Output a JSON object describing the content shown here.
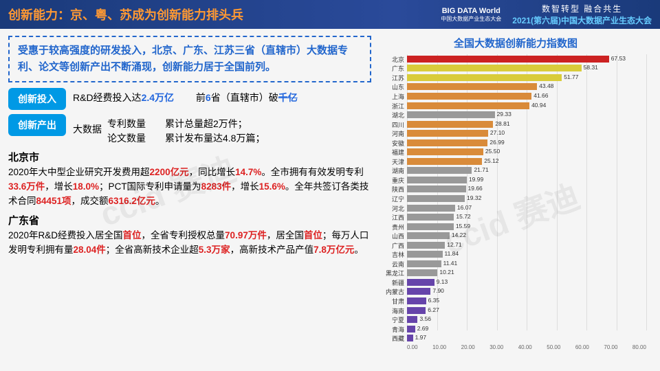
{
  "header": {
    "title": "创新能力：京、粤、苏成为创新能力排头兵",
    "logo_top": "BIG DATA World",
    "logo_sub": "中国大数据产业生态大会",
    "right_line1": "数智转型 融合共生",
    "right_line2": "2021(第六届)中国大数据产业生态大会"
  },
  "summary": "受惠于较高强度的研发投入，北京、广东、江苏三省（直辖市）大数据专利、论文等创新产出不断涌现，创新能力居于全国前列。",
  "badge1": {
    "label": "创新投入",
    "text_a": "R&D经费投入达",
    "hl_a": "2.4万亿",
    "text_b": "前",
    "hl_b": "6",
    "text_c": "省（直辖市）破",
    "hl_c": "千亿"
  },
  "badge2": {
    "label": "创新产出",
    "prefix": "大数据",
    "line1_a": "专利数量",
    "line1_b": "累计总量超2万件；",
    "line2_a": "论文数量",
    "line2_b": "累计发布量达4.8万篇；"
  },
  "beijing": {
    "title": "北京市",
    "t1": "2020年大中型企业研究开发费用超",
    "v1": "2200亿元",
    "t2": "，同比增长",
    "v2": "14.7%",
    "t3": "。全市拥有有效发明专利",
    "v3": "33.6万件",
    "t4": "，增长",
    "v4": "18.0%",
    "t5": "；PCT国际专利申请量为",
    "v5": "8283件",
    "t6": "，增长",
    "v6": "15.6%",
    "t7": "。全年共签订各类技术合同",
    "v7": "84451项",
    "t8": "，成交额",
    "v8": "6316.2亿元",
    "t9": "。"
  },
  "guangdong": {
    "title": "广东省",
    "t1": "2020年R&D经费投入居全国",
    "v1": "首位",
    "t2": "，全省专利授权总量",
    "v2": "70.97万件",
    "t3": "，居全国",
    "v3": "首位",
    "t4": "；每万人口发明专利拥有量",
    "v4": "28.04件",
    "t5": "；全省高新技术企业超",
    "v5": "5.3万家",
    "t6": "，高新技术产品产值",
    "v6": "7.8万亿元",
    "t7": "。"
  },
  "chart": {
    "title": "全国大数据创新能力指数图",
    "xmax": 80,
    "xticks": [
      "0.00",
      "10.00",
      "20.00",
      "30.00",
      "40.00",
      "50.00",
      "60.00",
      "70.00",
      "80.00"
    ],
    "default_color": "#d98b3a",
    "bars": [
      {
        "label": "北京",
        "value": 67.53,
        "color": "#cc2222"
      },
      {
        "label": "广东",
        "value": 58.31,
        "color": "#d9cc3a"
      },
      {
        "label": "江苏",
        "value": 51.77,
        "color": "#d9cc3a"
      },
      {
        "label": "山东",
        "value": 43.48
      },
      {
        "label": "上海",
        "value": 41.66
      },
      {
        "label": "浙江",
        "value": 40.94
      },
      {
        "label": "湖北",
        "value": 29.33,
        "color": "#999999"
      },
      {
        "label": "四川",
        "value": 28.81
      },
      {
        "label": "河南",
        "value": 27.1
      },
      {
        "label": "安徽",
        "value": 26.99
      },
      {
        "label": "福建",
        "value": 25.5
      },
      {
        "label": "天津",
        "value": 25.12
      },
      {
        "label": "湖南",
        "value": 21.71,
        "color": "#999999"
      },
      {
        "label": "重庆",
        "value": 19.99,
        "color": "#999999"
      },
      {
        "label": "陕西",
        "value": 19.66,
        "color": "#999999"
      },
      {
        "label": "辽宁",
        "value": 19.32,
        "color": "#999999"
      },
      {
        "label": "河北",
        "value": 16.07,
        "color": "#999999"
      },
      {
        "label": "江西",
        "value": 15.72,
        "color": "#999999"
      },
      {
        "label": "贵州",
        "value": 15.59,
        "color": "#999999"
      },
      {
        "label": "山西",
        "value": 14.22,
        "color": "#999999"
      },
      {
        "label": "广西",
        "value": 12.71,
        "color": "#999999"
      },
      {
        "label": "吉林",
        "value": 11.84,
        "color": "#999999"
      },
      {
        "label": "云南",
        "value": 11.41,
        "color": "#999999"
      },
      {
        "label": "黑龙江",
        "value": 10.21,
        "color": "#999999"
      },
      {
        "label": "新疆",
        "value": 9.13,
        "color": "#6644aa"
      },
      {
        "label": "内蒙古",
        "value": 7.9,
        "color": "#6644aa"
      },
      {
        "label": "甘肃",
        "value": 6.35,
        "color": "#6644aa"
      },
      {
        "label": "海南",
        "value": 6.27,
        "color": "#6644aa"
      },
      {
        "label": "宁夏",
        "value": 3.56,
        "color": "#6644aa"
      },
      {
        "label": "青海",
        "value": 2.69,
        "color": "#6644aa"
      },
      {
        "label": "西藏",
        "value": 1.97,
        "color": "#6644aa"
      }
    ]
  },
  "watermark": "ccid 赛迪"
}
